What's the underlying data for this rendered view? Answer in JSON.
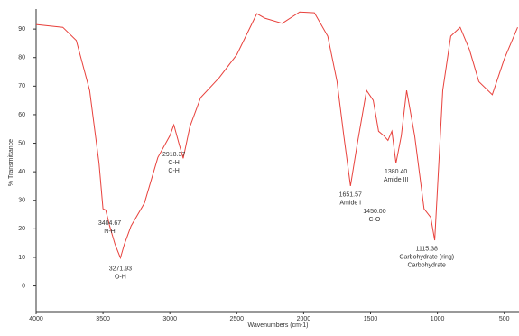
{
  "chart_data": {
    "type": "line",
    "x_label": "Wavenumbers (cm-1)",
    "y_label": "% Transmittance",
    "xlim": [
      4000,
      390
    ],
    "xticks": [
      4000,
      3500,
      3000,
      2500,
      2000,
      1500,
      1000,
      500
    ],
    "ylim": [
      -9,
      97
    ],
    "yticks": [
      0,
      10,
      20,
      30,
      40,
      50,
      60,
      70,
      80,
      90
    ],
    "series": [
      {
        "color": "#e8413c",
        "x": [
          4000,
          3800,
          3700,
          3600,
          3530,
          3500,
          3480,
          3450,
          3410,
          3370,
          3340,
          3290,
          3190,
          3090,
          3000,
          2970,
          2930,
          2900,
          2850,
          2770,
          2630,
          2500,
          2350,
          2290,
          2160,
          2030,
          1920,
          1820,
          1750,
          1700,
          1650,
          1600,
          1530,
          1480,
          1440,
          1400,
          1370,
          1340,
          1310,
          1270,
          1230,
          1170,
          1100,
          1050,
          1020,
          960,
          900,
          830,
          760,
          690,
          590,
          500,
          400
        ],
        "values": [
          91.6,
          90.6,
          86,
          68.5,
          43,
          27,
          26.6,
          21,
          14.6,
          9.8,
          14.6,
          21,
          29,
          45,
          52.6,
          56.4,
          49.5,
          44.7,
          55.8,
          66,
          73,
          81,
          95.4,
          93.8,
          92,
          96,
          95.7,
          87.5,
          71.6,
          52.6,
          35,
          49.5,
          68.5,
          65,
          54.2,
          52.6,
          51,
          54.2,
          43,
          52.6,
          68.5,
          52.6,
          27,
          24,
          16,
          68.5,
          87.5,
          90.6,
          82.7,
          71.6,
          67,
          79.5,
          90.6
        ]
      }
    ],
    "annotations": [
      {
        "x": 3450,
        "y": 22,
        "lines": [
          "3404.67",
          "N-H"
        ]
      },
      {
        "x": 3370,
        "y": 6,
        "lines": [
          "3271.93",
          "O-H"
        ]
      },
      {
        "x": 2970,
        "y": 46,
        "lines": [
          "2918.37",
          "C-H",
          "C-H"
        ]
      },
      {
        "x": 1650,
        "y": 32,
        "lines": [
          "1651.57",
          "Amide I"
        ]
      },
      {
        "x": 1470,
        "y": 26,
        "lines": [
          "1450.00",
          "C-O"
        ]
      },
      {
        "x": 1310,
        "y": 40,
        "lines": [
          "1380.40",
          "Amide III"
        ]
      },
      {
        "x": 1080,
        "y": 13,
        "lines": [
          "1115.38",
          "Carbohydrate (ring)",
          "Carbohydrate"
        ]
      }
    ]
  }
}
